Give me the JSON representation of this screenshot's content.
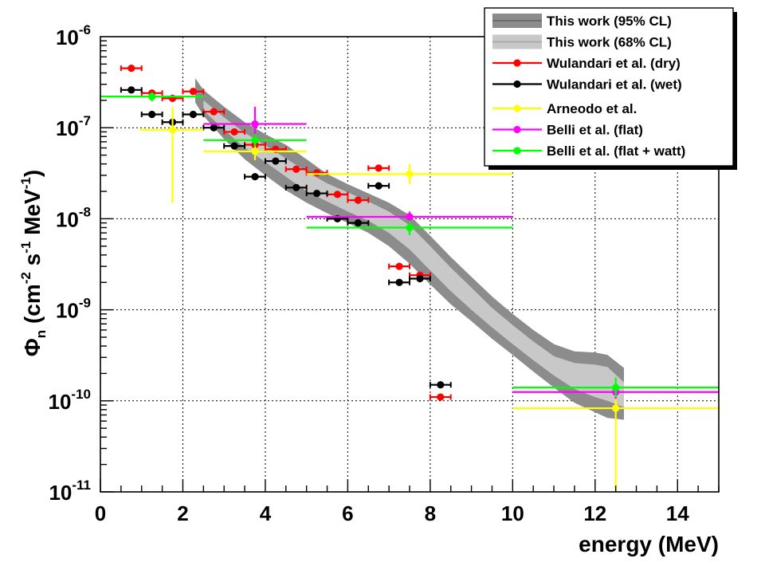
{
  "chart_data": {
    "type": "scatter",
    "title": "",
    "xlabel": "energy (MeV)",
    "ylabel": {
      "base": "Φ",
      "sub": "n",
      "text": " (cm",
      "exp1": "-2",
      "mid": " s",
      "exp2": "-1",
      "mid2": " MeV",
      "exp3": "-1",
      "end": ")"
    },
    "xlim": [
      0,
      15
    ],
    "ylim": [
      1e-11,
      1e-06
    ],
    "yscale": "log",
    "grid": true,
    "legend_position": "top-right",
    "x_ticks": [
      {
        "value": 0,
        "label": "0"
      },
      {
        "value": 2,
        "label": "2"
      },
      {
        "value": 4,
        "label": "4"
      },
      {
        "value": 6,
        "label": "6"
      },
      {
        "value": 8,
        "label": "8"
      },
      {
        "value": 10,
        "label": "10"
      },
      {
        "value": 12,
        "label": "12"
      },
      {
        "value": 14,
        "label": "14"
      }
    ],
    "y_ticks": [
      {
        "value": 1e-06,
        "base": "10",
        "exp": "-6"
      },
      {
        "value": 1e-07,
        "base": "10",
        "exp": "-7"
      },
      {
        "value": 1e-08,
        "base": "10",
        "exp": "-8"
      },
      {
        "value": 1e-09,
        "base": "10",
        "exp": "-9"
      },
      {
        "value": 1e-10,
        "base": "10",
        "exp": "-10"
      },
      {
        "value": 1e-11,
        "base": "10",
        "exp": "-11"
      }
    ],
    "bands": [
      {
        "name": "This work (95% CL)",
        "color": "#8c8c8c",
        "x": [
          2.3,
          2.5,
          3.0,
          3.5,
          4.0,
          4.5,
          5.0,
          5.5,
          6.0,
          6.5,
          7.0,
          7.5,
          8.0,
          8.5,
          9.0,
          9.5,
          10.0,
          10.5,
          11.0,
          11.5,
          12.0,
          12.3,
          12.7
        ],
        "upper": [
          3.5e-07,
          2.6e-07,
          1.7e-07,
          1.15e-07,
          8.5e-08,
          6.5e-08,
          4.5e-08,
          3.1e-08,
          2.4e-08,
          1.9e-08,
          1.5e-08,
          1.1e-08,
          6.5e-09,
          3.8e-09,
          2.3e-09,
          1.4e-09,
          9e-10,
          6e-10,
          4.2e-10,
          3.5e-10,
          3.4e-10,
          3.2e-10,
          2.3e-10
        ],
        "lower": [
          1.9e-07,
          1.35e-07,
          7.5e-08,
          4.5e-08,
          3e-08,
          2.05e-08,
          1.5e-08,
          1.15e-08,
          9e-09,
          7e-09,
          5e-09,
          3.2e-09,
          1.9e-09,
          1.15e-09,
          7.5e-10,
          4.8e-10,
          3.2e-10,
          2.1e-10,
          1.4e-10,
          9.5e-11,
          7.5e-11,
          6.5e-11,
          6.2e-11
        ]
      },
      {
        "name": "This work (68% CL)",
        "color": "#c8c8c8",
        "x": [
          2.5,
          3.0,
          3.5,
          4.0,
          4.5,
          5.0,
          5.5,
          6.0,
          6.5,
          7.0,
          7.5,
          8.0,
          8.5,
          9.0,
          9.5,
          10.0,
          10.5,
          11.0,
          11.5,
          12.0,
          12.3,
          12.7
        ],
        "upper": [
          2e-07,
          1.3e-07,
          8.8e-08,
          6.4e-08,
          4.6e-08,
          3.3e-08,
          2.45e-08,
          1.95e-08,
          1.55e-08,
          1.2e-08,
          8.5e-09,
          5e-09,
          2.9e-09,
          1.75e-09,
          1.05e-09,
          6.8e-10,
          4.5e-10,
          3.1e-10,
          2.6e-10,
          2.5e-10,
          2.35e-10,
          1.6e-10
        ],
        "lower": [
          1.55e-07,
          9.5e-08,
          6e-08,
          4.2e-08,
          2.9e-08,
          2e-08,
          1.55e-08,
          1.2e-08,
          9.5e-09,
          7e-09,
          4.6e-09,
          2.7e-09,
          1.6e-09,
          1e-09,
          6.4e-10,
          4.2e-10,
          2.8e-10,
          1.9e-10,
          1.35e-10,
          1.1e-10,
          1e-10,
          8.5e-11
        ]
      }
    ],
    "series": [
      {
        "name": "Wulandari et al. (dry)",
        "color": "#ff0000",
        "points": [
          {
            "x": 0.75,
            "xerr": 0.25,
            "y": 4.5e-07
          },
          {
            "x": 1.25,
            "xerr": 0.25,
            "y": 2.4e-07
          },
          {
            "x": 1.75,
            "xerr": 0.25,
            "y": 2.1e-07
          },
          {
            "x": 2.25,
            "xerr": 0.25,
            "y": 2.5e-07
          },
          {
            "x": 2.75,
            "xerr": 0.25,
            "y": 1.5e-07
          },
          {
            "x": 3.25,
            "xerr": 0.25,
            "y": 9e-08
          },
          {
            "x": 3.75,
            "xerr": 0.25,
            "y": 6.5e-08
          },
          {
            "x": 4.25,
            "xerr": 0.25,
            "y": 5.8e-08
          },
          {
            "x": 4.75,
            "xerr": 0.25,
            "y": 3.5e-08
          },
          {
            "x": 5.25,
            "xerr": 0.25,
            "y": 3.2e-08
          },
          {
            "x": 5.75,
            "xerr": 0.25,
            "y": 1.85e-08
          },
          {
            "x": 6.25,
            "xerr": 0.25,
            "y": 1.6e-08
          },
          {
            "x": 6.75,
            "xerr": 0.25,
            "y": 3.6e-08
          },
          {
            "x": 7.25,
            "xerr": 0.25,
            "y": 3e-09
          },
          {
            "x": 7.75,
            "xerr": 0.25,
            "y": 2.4e-09
          },
          {
            "x": 8.25,
            "xerr": 0.25,
            "y": 1.1e-10
          }
        ]
      },
      {
        "name": "Wulandari et al. (wet)",
        "color": "#000000",
        "points": [
          {
            "x": 0.75,
            "xerr": 0.25,
            "y": 2.6e-07
          },
          {
            "x": 1.25,
            "xerr": 0.25,
            "y": 1.4e-07
          },
          {
            "x": 1.75,
            "xerr": 0.25,
            "y": 1.15e-07
          },
          {
            "x": 2.25,
            "xerr": 0.25,
            "y": 1.4e-07
          },
          {
            "x": 2.75,
            "xerr": 0.25,
            "y": 1e-07
          },
          {
            "x": 3.25,
            "xerr": 0.25,
            "y": 6.3e-08
          },
          {
            "x": 3.75,
            "xerr": 0.25,
            "y": 2.9e-08
          },
          {
            "x": 4.25,
            "xerr": 0.25,
            "y": 4.3e-08
          },
          {
            "x": 4.75,
            "xerr": 0.25,
            "y": 2.2e-08
          },
          {
            "x": 5.25,
            "xerr": 0.25,
            "y": 1.9e-08
          },
          {
            "x": 5.75,
            "xerr": 0.25,
            "y": 1e-08
          },
          {
            "x": 6.25,
            "xerr": 0.25,
            "y": 9e-09
          },
          {
            "x": 6.75,
            "xerr": 0.25,
            "y": 2.3e-08
          },
          {
            "x": 7.25,
            "xerr": 0.25,
            "y": 2e-09
          },
          {
            "x": 7.75,
            "xerr": 0.25,
            "y": 2.2e-09
          },
          {
            "x": 8.25,
            "xerr": 0.25,
            "y": 1.5e-10
          }
        ]
      },
      {
        "name": "Arneodo et al.",
        "color": "#ffff00",
        "points": [
          {
            "x": 1.75,
            "xlo": 0.95,
            "xhi": 2.5,
            "y": 9.5e-08,
            "ylo": 1.5e-08,
            "yhi": 1.7e-07
          },
          {
            "x": 3.75,
            "xlo": 2.5,
            "xhi": 5.0,
            "y": 5.5e-08,
            "ylo": 4.4e-08,
            "yhi": 6.6e-08
          },
          {
            "x": 7.5,
            "xlo": 5.0,
            "xhi": 10.0,
            "y": 3.1e-08,
            "ylo": 2.4e-08,
            "yhi": 4e-08
          },
          {
            "x": 12.5,
            "xlo": 10.0,
            "xhi": 15.0,
            "y": 8.3e-11,
            "ylo": 1e-11,
            "yhi": 1.45e-10
          }
        ]
      },
      {
        "name": "Belli et al. (flat)",
        "color": "#ff00ff",
        "points": [
          {
            "x": 3.75,
            "xlo": 2.5,
            "xhi": 5.0,
            "y": 1.1e-07,
            "ylo": 7e-08,
            "yhi": 1.7e-07
          },
          {
            "x": 7.5,
            "xlo": 5.0,
            "xhi": 10.0,
            "y": 1.05e-08,
            "ylo": 9e-09,
            "yhi": 1.2e-08
          },
          {
            "x": 12.5,
            "xlo": 10.0,
            "xhi": 15.0,
            "y": 1.25e-10,
            "ylo": 1.05e-10,
            "yhi": 1.45e-10
          }
        ]
      },
      {
        "name": "Belli et al. (flat + watt)",
        "color": "#00ff00",
        "points": [
          {
            "x": 1.25,
            "xlo": 0.0,
            "xhi": 2.5,
            "y": 2.2e-07,
            "ylo": 1.95e-07,
            "yhi": 2.45e-07
          },
          {
            "x": 3.75,
            "xlo": 2.5,
            "xhi": 5.0,
            "y": 7.3e-08,
            "ylo": 6.2e-08,
            "yhi": 8.5e-08
          },
          {
            "x": 7.5,
            "xlo": 5.0,
            "xhi": 10.0,
            "y": 8e-09,
            "ylo": 6.6e-09,
            "yhi": 9.5e-09
          },
          {
            "x": 12.5,
            "xlo": 10.0,
            "xhi": 15.0,
            "y": 1.4e-10,
            "ylo": 1.1e-10,
            "yhi": 1.8e-10
          }
        ]
      }
    ],
    "legend": [
      {
        "label": "This work (95% CL)",
        "kind": "band",
        "color": "#8c8c8c"
      },
      {
        "label": "This work (68% CL)",
        "kind": "band",
        "color": "#c8c8c8"
      },
      {
        "label": "Wulandari et al. (dry)",
        "kind": "marker",
        "color": "#ff0000"
      },
      {
        "label": "Wulandari et al. (wet)",
        "kind": "marker",
        "color": "#000000"
      },
      {
        "label": "Arneodo et al.",
        "kind": "marker",
        "color": "#ffff00"
      },
      {
        "label": "Belli et al. (flat)",
        "kind": "marker",
        "color": "#ff00ff"
      },
      {
        "label": "Belli et al. (flat + watt)",
        "kind": "marker",
        "color": "#00ff00"
      }
    ]
  }
}
